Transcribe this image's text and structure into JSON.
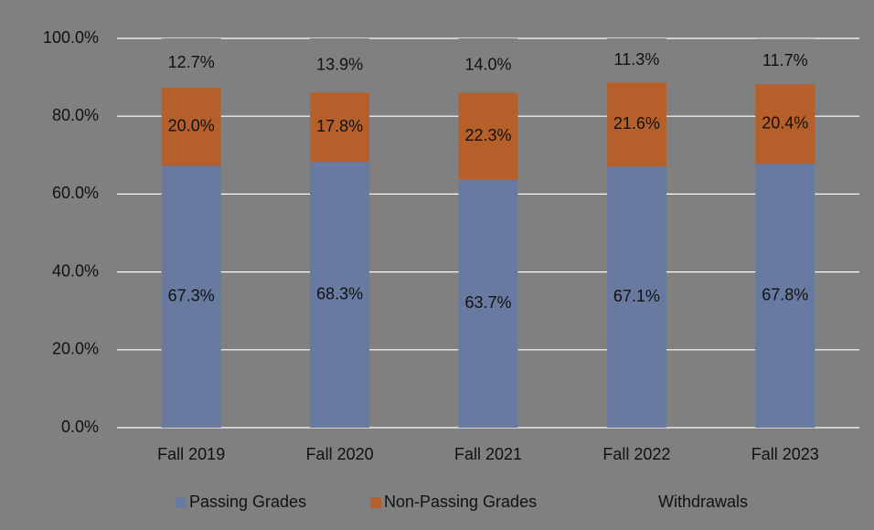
{
  "chart_data": {
    "type": "stacked_bar",
    "categories": [
      "Fall 2019",
      "Fall 2020",
      "Fall 2021",
      "Fall 2022",
      "Fall 2023"
    ],
    "series": [
      {
        "name": "Passing Grades",
        "color": "#687a9f",
        "values": [
          67.3,
          68.3,
          63.7,
          67.1,
          67.8
        ],
        "value_labels": [
          "67.3%",
          "68.3%",
          "63.7%",
          "67.1%",
          "67.8%"
        ]
      },
      {
        "name": "Non-Passing Grades",
        "color": "#b5602b",
        "values": [
          20.0,
          17.8,
          22.3,
          21.6,
          20.4
        ],
        "value_labels": [
          "20.0%",
          "17.8%",
          "22.3%",
          "21.6%",
          "20.4%"
        ]
      },
      {
        "name": "Withdrawals",
        "color": "#808080",
        "values": [
          12.7,
          13.9,
          14.0,
          11.3,
          11.7
        ],
        "value_labels": [
          "12.7%",
          "13.9%",
          "14.0%",
          "11.3%",
          "11.7%"
        ]
      }
    ],
    "ylim": [
      0,
      100
    ],
    "yticks": [
      {
        "value": 0,
        "label": "0.0%"
      },
      {
        "value": 20,
        "label": "20.0%"
      },
      {
        "value": 40,
        "label": "40.0%"
      },
      {
        "value": 60,
        "label": "60.0%"
      },
      {
        "value": 80,
        "label": "80.0%"
      },
      {
        "value": 100,
        "label": "100.0%"
      }
    ],
    "grid": true,
    "legend": "bottom"
  }
}
